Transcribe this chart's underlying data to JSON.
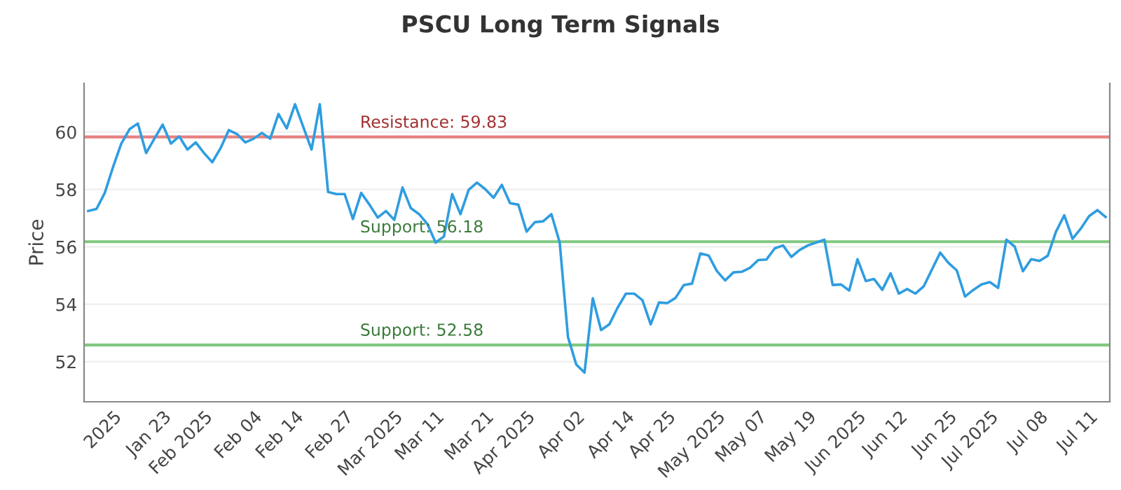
{
  "chart_data": {
    "type": "line",
    "title": "PSCU Long Term Signals",
    "ylabel": "Price",
    "categories": [
      null,
      null,
      null,
      "2025",
      null,
      null,
      null,
      null,
      null,
      "Jan 23",
      null,
      null,
      null,
      null,
      "Feb 2025",
      null,
      null,
      null,
      null,
      null,
      "Feb 04",
      null,
      null,
      null,
      null,
      "Feb 14",
      null,
      null,
      null,
      null,
      null,
      "Feb 27",
      null,
      null,
      null,
      null,
      null,
      "Mar 2025",
      null,
      null,
      null,
      null,
      "Mar 11",
      null,
      null,
      null,
      null,
      null,
      "Mar 21",
      null,
      null,
      null,
      null,
      "Apr 2025",
      null,
      null,
      null,
      null,
      null,
      "Apr 02",
      null,
      null,
      null,
      null,
      null,
      "Apr 14",
      null,
      null,
      null,
      null,
      "Apr 25",
      null,
      null,
      null,
      null,
      null,
      "May 2025",
      null,
      null,
      null,
      null,
      "May 07",
      null,
      null,
      null,
      null,
      null,
      "May 19",
      null,
      null,
      null,
      null,
      null,
      "Jun 2025",
      null,
      null,
      null,
      null,
      "Jun 12",
      null,
      null,
      null,
      null,
      null,
      "Jun 25",
      null,
      null,
      null,
      null,
      "Jul 2025",
      null,
      null,
      null,
      null,
      null,
      "Jul 08",
      null,
      null,
      null,
      null,
      null,
      "Jul 11",
      null,
      null
    ],
    "series": [
      {
        "color": "#2f9de0",
        "values": [
          57.25,
          57.32,
          57.88,
          58.78,
          59.6,
          60.1,
          60.3,
          59.27,
          59.77,
          60.26,
          59.6,
          59.85,
          59.39,
          59.64,
          59.27,
          58.95,
          59.44,
          60.07,
          59.93,
          59.64,
          59.77,
          59.97,
          59.77,
          60.63,
          60.13,
          60.97,
          60.18,
          59.39,
          60.97,
          57.91,
          57.84,
          57.84,
          56.97,
          57.88,
          57.47,
          57.02,
          57.25,
          56.94,
          58.07,
          57.35,
          57.14,
          56.8,
          56.15,
          56.36,
          57.84,
          57.14,
          57.99,
          58.24,
          58.01,
          57.71,
          58.16,
          57.52,
          57.47,
          56.53,
          56.86,
          56.89,
          57.14,
          56.15,
          52.86,
          51.9,
          51.62,
          54.21,
          53.1,
          53.3,
          53.88,
          54.37,
          54.37,
          54.14,
          53.3,
          54.06,
          54.04,
          54.22,
          54.67,
          54.72,
          55.77,
          55.7,
          55.16,
          54.83,
          55.11,
          55.13,
          55.27,
          55.54,
          55.56,
          55.95,
          56.05,
          55.65,
          55.89,
          56.05,
          56.15,
          56.25,
          54.67,
          54.69,
          54.48,
          55.57,
          54.81,
          54.88,
          54.5,
          55.08,
          54.37,
          54.53,
          54.37,
          54.62,
          55.21,
          55.8,
          55.44,
          55.18,
          54.27,
          54.5,
          54.69,
          54.77,
          54.57,
          56.25,
          56.01,
          55.15,
          55.57,
          55.51,
          55.69,
          56.53,
          57.1,
          56.28,
          56.64,
          57.07,
          57.28,
          57.04
        ]
      }
    ],
    "ylim": [
      50.6,
      61.7
    ],
    "yticks": [
      52,
      54,
      56,
      58,
      60
    ],
    "grid": "y",
    "marker": "none",
    "line_style": "solid",
    "ref_lines": [
      {
        "axis": "y",
        "value": 59.83,
        "label": "Resistance: 59.83",
        "color": "#e88080"
      },
      {
        "axis": "y",
        "value": 56.18,
        "label": "Support: 56.18",
        "color": "#80c880"
      },
      {
        "axis": "y",
        "value": 52.58,
        "label": "Support: 52.58",
        "color": "#80c880"
      }
    ]
  }
}
